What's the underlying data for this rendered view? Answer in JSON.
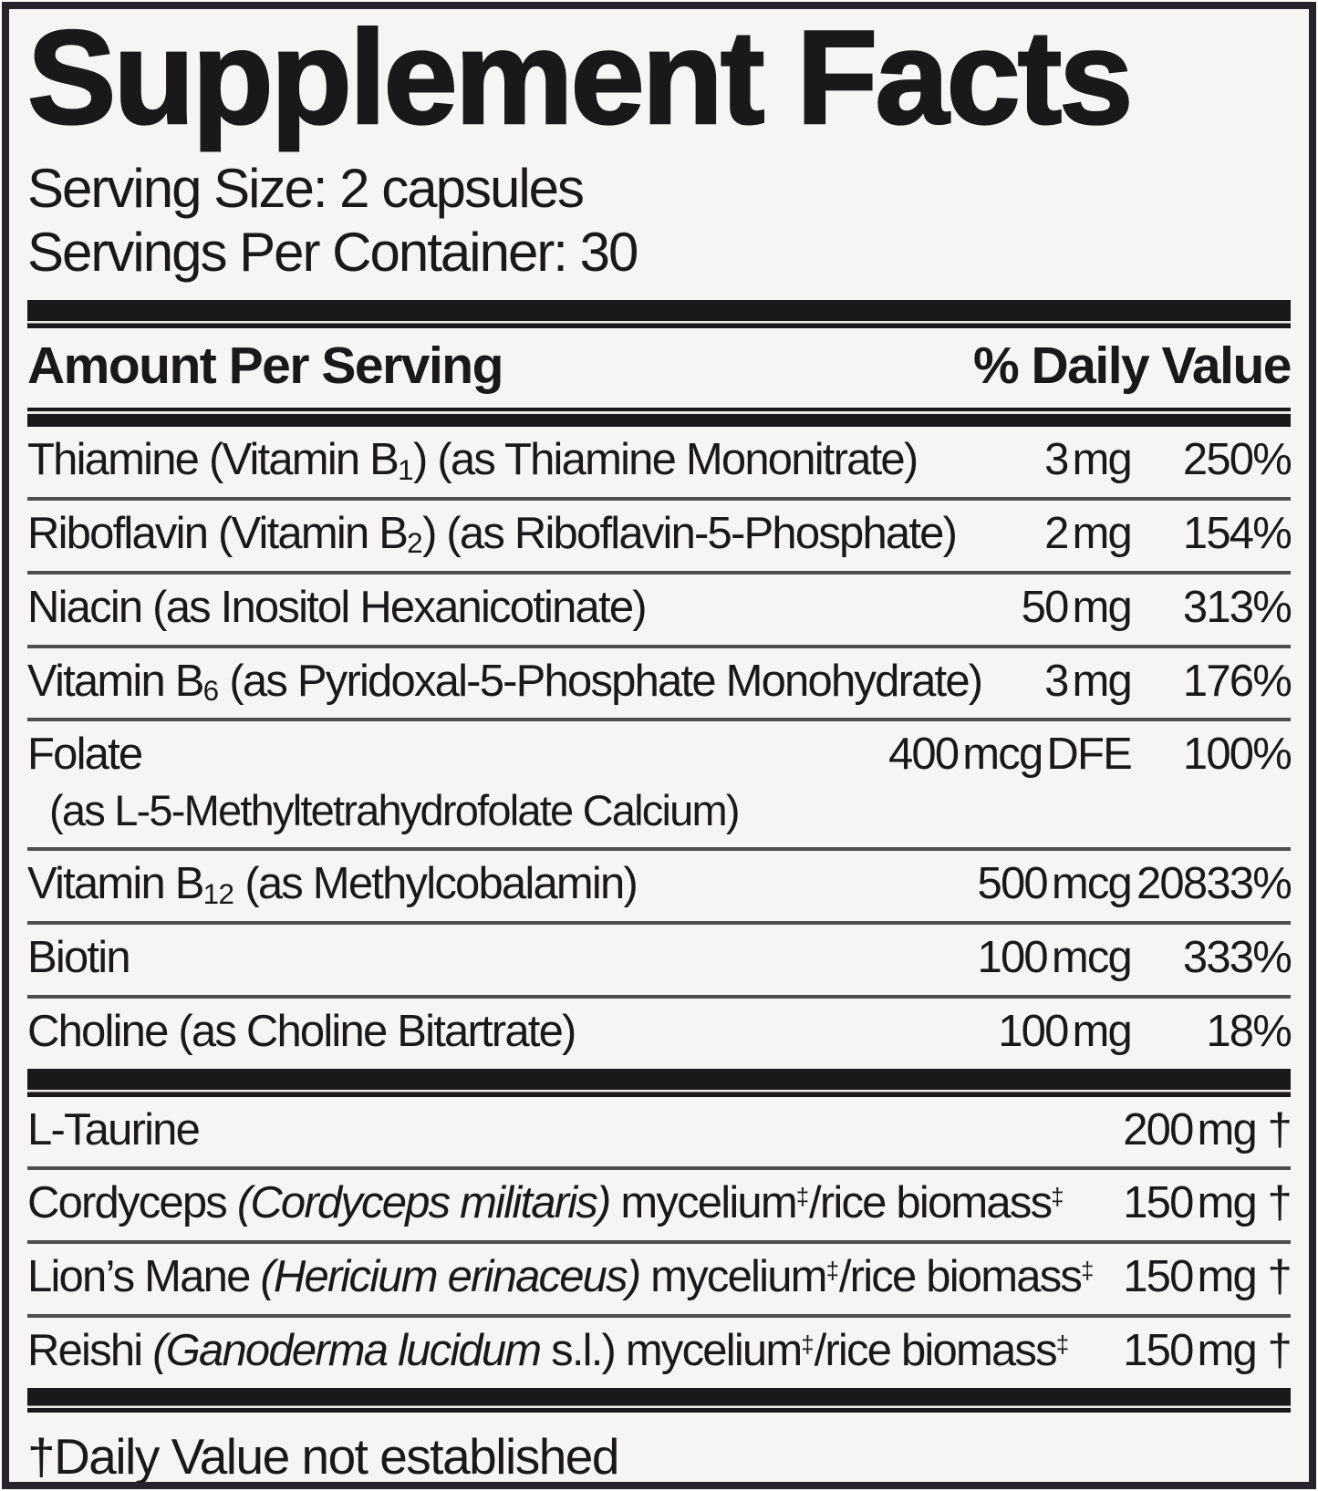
{
  "label": {
    "title": "Supplement Facts",
    "serving_size": "Serving Size: 2 capsules",
    "servings_per_container": "Servings Per Container: 30",
    "header": {
      "amount": "Amount Per Serving",
      "daily_value": "% Daily Value"
    },
    "vitamin_rows": [
      {
        "name_segments": [
          {
            "t": "Thiamine (Vitamin B"
          },
          {
            "t": "1",
            "style": "sub"
          },
          {
            "t": ") (as Thiamine Mononitrate)"
          }
        ],
        "amount": "3 mg",
        "daily_value": "250%"
      },
      {
        "name_segments": [
          {
            "t": "Riboflavin (Vitamin B"
          },
          {
            "t": "2",
            "style": "sub"
          },
          {
            "t": ") (as Riboflavin-5-Phosphate)"
          }
        ],
        "amount": "2 mg",
        "daily_value": "154%"
      },
      {
        "name_segments": [
          {
            "t": "Niacin (as Inositol Hexanicotinate)"
          }
        ],
        "amount": "50 mg",
        "daily_value": "313%"
      },
      {
        "name_segments": [
          {
            "t": "Vitamin B"
          },
          {
            "t": "6",
            "style": "sub"
          },
          {
            "t": " (as Pyridoxal-5-Phosphate Monohydrate)"
          }
        ],
        "amount": "3 mg",
        "daily_value": "176%"
      },
      {
        "name_segments": [
          {
            "t": "Folate"
          }
        ],
        "name_second_line": "(as L-5-Methyltetrahydrofolate Calcium)",
        "amount": "400 mcg DFE",
        "daily_value": "100%"
      },
      {
        "name_segments": [
          {
            "t": "Vitamin B"
          },
          {
            "t": "12",
            "style": "sub"
          },
          {
            "t": " (as Methylcobalamin)"
          }
        ],
        "amount": "500 mcg",
        "daily_value": "20833%"
      },
      {
        "name_segments": [
          {
            "t": "Biotin"
          }
        ],
        "amount": "100 mcg",
        "daily_value": "333%"
      },
      {
        "name_segments": [
          {
            "t": "Choline (as Choline Bitartrate)"
          }
        ],
        "amount": "100 mg",
        "daily_value": "18%"
      }
    ],
    "botanical_rows": [
      {
        "name_segments": [
          {
            "t": "L-Taurine"
          }
        ],
        "amount": "200 mg",
        "daily_value": "†"
      },
      {
        "name_segments": [
          {
            "t": "Cordyceps "
          },
          {
            "t": "(Cordyceps militaris)",
            "style": "i"
          },
          {
            "t": " mycelium"
          },
          {
            "t": "‡",
            "style": "sup"
          },
          {
            "t": "/rice biomass"
          },
          {
            "t": "‡",
            "style": "sup"
          }
        ],
        "amount": "150 mg",
        "daily_value": "†"
      },
      {
        "name_segments": [
          {
            "t": "Lion’s Mane "
          },
          {
            "t": "(Hericium erinaceus)",
            "style": "i"
          },
          {
            "t": " mycelium"
          },
          {
            "t": "‡",
            "style": "sup"
          },
          {
            "t": "/rice biomass"
          },
          {
            "t": "‡",
            "style": "sup"
          }
        ],
        "amount": "150 mg",
        "daily_value": "†"
      },
      {
        "name_segments": [
          {
            "t": "Reishi "
          },
          {
            "t": "(Ganoderma lucidum",
            "style": "i"
          },
          {
            "t": " s.l.)"
          },
          {
            "t": " mycelium"
          },
          {
            "t": "‡",
            "style": "sup"
          },
          {
            "t": "/rice biomass"
          },
          {
            "t": "‡",
            "style": "sup"
          }
        ],
        "amount": "150 mg",
        "daily_value": "†"
      }
    ],
    "footnote": "†Daily Value not established",
    "colors": {
      "ink": "#1b181a",
      "paper": "#f7f5f4",
      "rule_gray": "#504d4d",
      "border": "#27222b"
    }
  }
}
